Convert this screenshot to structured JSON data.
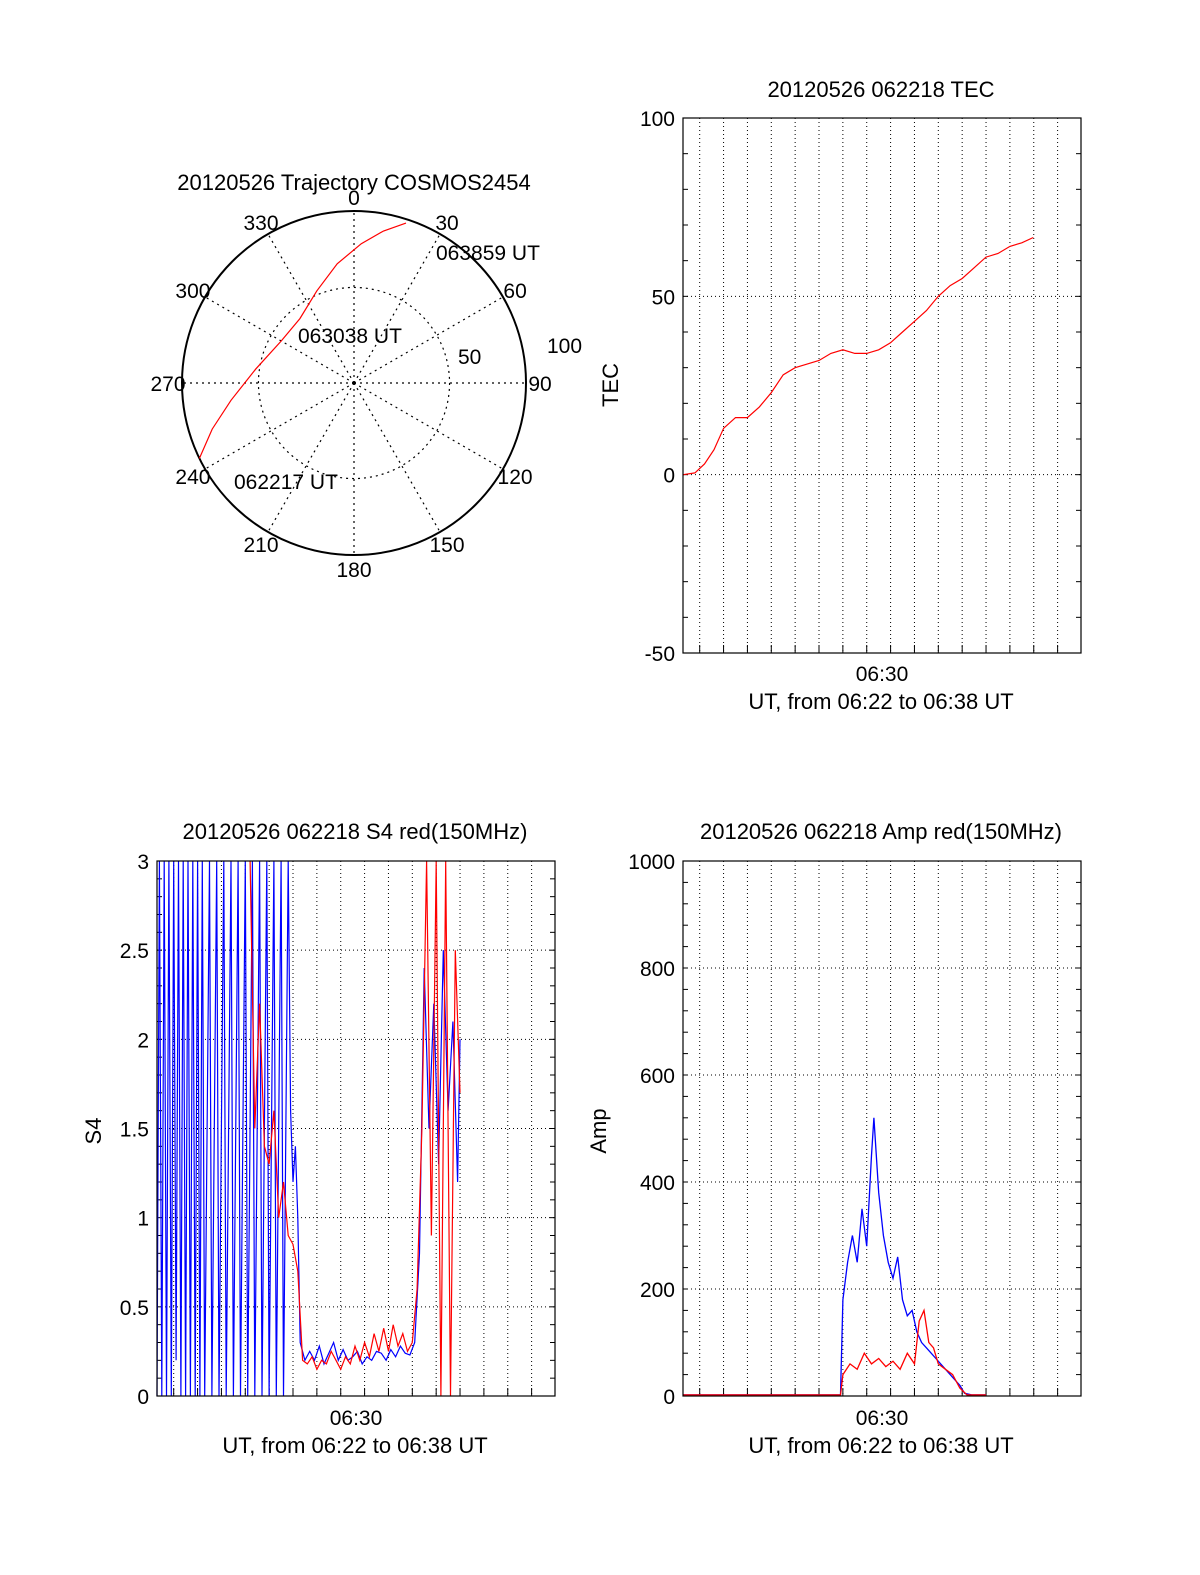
{
  "chart_data": [
    {
      "id": "trajectory",
      "type": "polar",
      "title": "20120526 Trajectory COSMOS2454",
      "angular_ticks": [
        0,
        30,
        60,
        90,
        120,
        150,
        180,
        210,
        240,
        270,
        300,
        330
      ],
      "angular_tick_labels": [
        "0",
        "30",
        "60",
        "90",
        "120",
        "150",
        "180",
        "210",
        "240",
        "270",
        "300",
        "330"
      ],
      "radial_tick_labels": [
        "50",
        "100"
      ],
      "radial_ticks": [
        50,
        100
      ],
      "track_color": "#ff0000",
      "track": [
        {
          "az": 244,
          "zen": 90
        },
        {
          "az": 252,
          "zen": 78
        },
        {
          "az": 262,
          "zen": 65
        },
        {
          "az": 278,
          "zen": 52
        },
        {
          "az": 300,
          "zen": 44
        },
        {
          "az": 320,
          "zen": 44
        },
        {
          "az": 338,
          "zen": 52
        },
        {
          "az": 352,
          "zen": 63
        },
        {
          "az": 3,
          "zen": 73
        },
        {
          "az": 11,
          "zen": 81
        },
        {
          "az": 18,
          "zen": 88
        }
      ],
      "annotations": [
        "063859 UT",
        "063038 UT",
        "062217 UT"
      ]
    },
    {
      "id": "tec",
      "type": "line",
      "title": "20120526 062218 TEC",
      "ylabel": "TEC",
      "xlabel": "UT, from 06:22 to 06:38 UT",
      "x_tick_label": "06:30",
      "y_ticks": [
        "-50",
        "0",
        "50",
        "100"
      ],
      "ylim": [
        -50,
        100
      ],
      "xlim_minutes": [
        22.3,
        38.98
      ],
      "series_color": "#ff0000",
      "series": [
        {
          "values": [
            [
              22.3,
              0
            ],
            [
              22.8,
              0.5
            ],
            [
              23.2,
              3
            ],
            [
              23.6,
              7
            ],
            [
              24.0,
              13
            ],
            [
              24.5,
              16
            ],
            [
              25.0,
              16
            ],
            [
              25.5,
              19
            ],
            [
              26.0,
              23
            ],
            [
              26.5,
              28
            ],
            [
              27.0,
              30
            ],
            [
              27.5,
              31
            ],
            [
              28.0,
              32
            ],
            [
              28.5,
              34
            ],
            [
              29.0,
              35
            ],
            [
              29.5,
              34
            ],
            [
              30.0,
              34
            ],
            [
              30.5,
              35
            ],
            [
              31.0,
              37
            ],
            [
              31.5,
              40
            ],
            [
              32.0,
              43
            ],
            [
              32.5,
              46
            ],
            [
              33.0,
              50
            ],
            [
              33.5,
              53
            ],
            [
              34.0,
              55
            ],
            [
              34.5,
              58
            ],
            [
              35.0,
              61
            ],
            [
              35.5,
              62
            ],
            [
              36.0,
              64
            ],
            [
              36.5,
              65
            ],
            [
              36.98,
              66.5
            ]
          ]
        }
      ]
    },
    {
      "id": "s4",
      "type": "line",
      "title": "20120526 062218 S4 red(150MHz)",
      "ylabel": "S4",
      "xlabel": "UT, from 06:22 to 06:38 UT",
      "x_tick_label": "06:30",
      "y_ticks": [
        "0",
        "0.5",
        "1",
        "1.5",
        "2",
        "2.5",
        "3"
      ],
      "ylim": [
        0,
        3
      ],
      "xlim_minutes": [
        22.3,
        38.98
      ],
      "series": [
        {
          "color": "#0000ff",
          "values": [
            [
              22.3,
              0
            ],
            [
              22.4,
              3
            ],
            [
              22.5,
              0
            ],
            [
              22.6,
              3
            ],
            [
              22.7,
              0
            ],
            [
              22.8,
              3
            ],
            [
              22.9,
              0
            ],
            [
              23.0,
              3
            ],
            [
              23.1,
              0.2
            ],
            [
              23.2,
              3
            ],
            [
              23.3,
              0
            ],
            [
              23.4,
              3
            ],
            [
              23.5,
              0
            ],
            [
              23.6,
              3
            ],
            [
              23.7,
              0
            ],
            [
              23.8,
              3
            ],
            [
              23.9,
              0
            ],
            [
              24.0,
              3
            ],
            [
              24.1,
              0
            ],
            [
              24.2,
              3
            ],
            [
              24.3,
              0
            ],
            [
              24.5,
              3
            ],
            [
              24.6,
              0
            ],
            [
              24.8,
              3
            ],
            [
              24.9,
              0
            ],
            [
              25.1,
              3
            ],
            [
              25.2,
              0
            ],
            [
              25.4,
              3
            ],
            [
              25.5,
              0
            ],
            [
              25.7,
              3
            ],
            [
              25.8,
              0
            ],
            [
              26.0,
              3
            ],
            [
              26.1,
              0
            ],
            [
              26.3,
              3
            ],
            [
              26.4,
              0
            ],
            [
              26.6,
              3
            ],
            [
              26.7,
              0
            ],
            [
              26.9,
              3
            ],
            [
              27.0,
              0
            ],
            [
              27.2,
              3
            ],
            [
              27.3,
              0
            ],
            [
              27.5,
              3
            ],
            [
              27.6,
              0
            ],
            [
              27.8,
              3
            ],
            [
              27.9,
              1.6
            ],
            [
              28.0,
              1.2
            ],
            [
              28.1,
              1.4
            ],
            [
              28.2,
              1.0
            ],
            [
              28.3,
              0.3
            ],
            [
              28.5,
              0.2
            ],
            [
              28.7,
              0.25
            ],
            [
              28.9,
              0.2
            ],
            [
              29.1,
              0.28
            ],
            [
              29.3,
              0.18
            ],
            [
              29.5,
              0.24
            ],
            [
              29.7,
              0.3
            ],
            [
              29.9,
              0.2
            ],
            [
              30.1,
              0.26
            ],
            [
              30.3,
              0.2
            ],
            [
              30.5,
              0.22
            ],
            [
              30.7,
              0.25
            ],
            [
              30.9,
              0.18
            ],
            [
              31.1,
              0.22
            ],
            [
              31.3,
              0.2
            ],
            [
              31.5,
              0.25
            ],
            [
              31.7,
              0.24
            ],
            [
              31.9,
              0.2
            ],
            [
              32.1,
              0.26
            ],
            [
              32.3,
              0.22
            ],
            [
              32.5,
              0.28
            ],
            [
              32.7,
              0.24
            ],
            [
              32.9,
              0.23
            ],
            [
              33.1,
              0.3
            ],
            [
              33.3,
              0.8
            ],
            [
              33.5,
              2.4
            ],
            [
              33.7,
              1.5
            ],
            [
              33.9,
              2.2
            ],
            [
              34.1,
              1.3
            ],
            [
              34.3,
              2.5
            ],
            [
              34.5,
              1.6
            ],
            [
              34.7,
              2.1
            ],
            [
              34.9,
              1.2
            ],
            [
              35.0,
              2.0
            ]
          ]
        },
        {
          "color": "#ff0000",
          "values": [
            [
              26.2,
              3
            ],
            [
              26.4,
              1.5
            ],
            [
              26.6,
              2.2
            ],
            [
              26.8,
              1.4
            ],
            [
              27.0,
              1.3
            ],
            [
              27.2,
              1.6
            ],
            [
              27.4,
              1.0
            ],
            [
              27.6,
              1.2
            ],
            [
              27.8,
              0.9
            ],
            [
              28.0,
              0.85
            ],
            [
              28.2,
              0.7
            ],
            [
              28.4,
              0.2
            ],
            [
              28.6,
              0.18
            ],
            [
              28.8,
              0.22
            ],
            [
              29.0,
              0.15
            ],
            [
              29.2,
              0.2
            ],
            [
              29.4,
              0.18
            ],
            [
              29.6,
              0.25
            ],
            [
              29.8,
              0.2
            ],
            [
              30.0,
              0.15
            ],
            [
              30.2,
              0.22
            ],
            [
              30.4,
              0.18
            ],
            [
              30.6,
              0.28
            ],
            [
              30.8,
              0.2
            ],
            [
              31.0,
              0.3
            ],
            [
              31.2,
              0.22
            ],
            [
              31.4,
              0.35
            ],
            [
              31.6,
              0.25
            ],
            [
              31.8,
              0.38
            ],
            [
              32.0,
              0.25
            ],
            [
              32.2,
              0.4
            ],
            [
              32.4,
              0.28
            ],
            [
              32.6,
              0.35
            ],
            [
              32.8,
              0.25
            ],
            [
              33.0,
              0.3
            ],
            [
              33.2,
              0.6
            ],
            [
              33.4,
              1.5
            ],
            [
              33.6,
              3
            ],
            [
              33.8,
              0.9
            ],
            [
              34.0,
              3
            ],
            [
              34.2,
              0
            ],
            [
              34.4,
              3
            ],
            [
              34.6,
              0
            ],
            [
              34.8,
              2.5
            ],
            [
              35.0,
              1.7
            ]
          ]
        }
      ]
    },
    {
      "id": "amp",
      "type": "line",
      "title": "20120526 062218 Amp red(150MHz)",
      "ylabel": "Amp",
      "xlabel": "UT, from 06:22 to 06:38 UT",
      "x_tick_label": "06:30",
      "y_ticks": [
        "0",
        "200",
        "400",
        "600",
        "800",
        "1000"
      ],
      "ylim": [
        0,
        1000
      ],
      "xlim_minutes": [
        22.3,
        38.98
      ],
      "series": [
        {
          "color": "#0000ff",
          "values": [
            [
              22.3,
              2
            ],
            [
              28.9,
              2
            ],
            [
              29.0,
              180
            ],
            [
              29.2,
              250
            ],
            [
              29.4,
              300
            ],
            [
              29.6,
              250
            ],
            [
              29.8,
              350
            ],
            [
              30.0,
              280
            ],
            [
              30.2,
              450
            ],
            [
              30.3,
              520
            ],
            [
              30.5,
              380
            ],
            [
              30.7,
              300
            ],
            [
              30.9,
              250
            ],
            [
              31.1,
              220
            ],
            [
              31.3,
              260
            ],
            [
              31.5,
              180
            ],
            [
              31.7,
              150
            ],
            [
              31.9,
              160
            ],
            [
              32.1,
              120
            ],
            [
              32.3,
              100
            ],
            [
              32.5,
              90
            ],
            [
              32.7,
              80
            ],
            [
              32.9,
              70
            ],
            [
              33.1,
              60
            ],
            [
              33.3,
              50
            ],
            [
              33.5,
              40
            ],
            [
              33.7,
              30
            ],
            [
              33.9,
              20
            ],
            [
              34.1,
              5
            ],
            [
              34.4,
              2
            ],
            [
              35.0,
              2
            ]
          ]
        },
        {
          "color": "#ff0000",
          "values": [
            [
              22.3,
              2
            ],
            [
              28.9,
              2
            ],
            [
              29.0,
              40
            ],
            [
              29.3,
              60
            ],
            [
              29.6,
              50
            ],
            [
              29.9,
              80
            ],
            [
              30.2,
              60
            ],
            [
              30.5,
              70
            ],
            [
              30.8,
              55
            ],
            [
              31.1,
              65
            ],
            [
              31.4,
              50
            ],
            [
              31.7,
              80
            ],
            [
              32.0,
              60
            ],
            [
              32.2,
              140
            ],
            [
              32.4,
              160
            ],
            [
              32.6,
              100
            ],
            [
              32.8,
              90
            ],
            [
              33.0,
              60
            ],
            [
              33.3,
              50
            ],
            [
              33.6,
              40
            ],
            [
              33.9,
              15
            ],
            [
              34.2,
              2
            ],
            [
              35.0,
              2
            ]
          ]
        }
      ]
    }
  ]
}
